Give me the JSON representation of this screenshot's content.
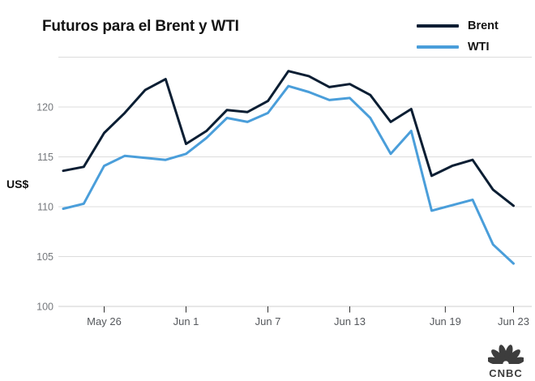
{
  "title": "Futuros para el Brent y WTI",
  "legend": [
    {
      "label": "Brent",
      "color": "#0b1e33"
    },
    {
      "label": "WTI",
      "color": "#4a9eda"
    }
  ],
  "y_axis_unit": "US$",
  "logo": {
    "text": "CNBC"
  },
  "colors": {
    "grid": "#dcdcdc",
    "axis_line": "#cfcfcf",
    "tick_mark": "#2f2f2f",
    "x_label": "#55585c",
    "y_label": "#75787c"
  },
  "chart_data": {
    "type": "line",
    "title": "Futuros para el Brent y WTI",
    "xlabel": "",
    "ylabel": "US$",
    "ylim": [
      100,
      125
    ],
    "yticks": [
      100,
      105,
      110,
      115,
      120
    ],
    "grid": true,
    "top_border": true,
    "legend_position": "top-right",
    "x_tick_labels": [
      {
        "label": "May 26",
        "pos": 2
      },
      {
        "label": "Jun 1",
        "pos": 6
      },
      {
        "label": "Jun 7",
        "pos": 10
      },
      {
        "label": "Jun 13",
        "pos": 14
      },
      {
        "label": "Jun 19",
        "pos": 18.667
      },
      {
        "label": "Jun 23",
        "pos": 22
      }
    ],
    "x_max": 22,
    "series": [
      {
        "name": "Brent",
        "color": "#0b1e33",
        "dates": [
          "May 24",
          "May 25",
          "May 26",
          "May 27",
          "May 30",
          "May 31",
          "Jun 1",
          "Jun 2",
          "Jun 3",
          "Jun 6",
          "Jun 7",
          "Jun 8",
          "Jun 9",
          "Jun 10",
          "Jun 13",
          "Jun 14",
          "Jun 15",
          "Jun 16",
          "Jun 17",
          "Jun 20",
          "Jun 21",
          "Jun 22",
          "Jun 23"
        ],
        "x": [
          0,
          1,
          2,
          3,
          4,
          5,
          6,
          7,
          8,
          9,
          10,
          11,
          12,
          13,
          14,
          15,
          16,
          17,
          18,
          19,
          20,
          21,
          22
        ],
        "values": [
          113.6,
          114.0,
          117.4,
          119.4,
          121.7,
          122.8,
          116.3,
          117.6,
          119.7,
          119.5,
          120.6,
          123.6,
          123.1,
          122.0,
          122.3,
          121.2,
          118.5,
          119.8,
          113.1,
          114.1,
          114.7,
          111.7,
          110.1
        ]
      },
      {
        "name": "WTI",
        "color": "#4a9eda",
        "dates": [
          "May 24",
          "May 25",
          "May 26",
          "May 27",
          "May 31",
          "Jun 1",
          "Jun 2",
          "Jun 3",
          "Jun 6",
          "Jun 7",
          "Jun 8",
          "Jun 9",
          "Jun 10",
          "Jun 13",
          "Jun 14",
          "Jun 15",
          "Jun 16",
          "Jun 17",
          "Jun 21",
          "Jun 22",
          "Jun 23"
        ],
        "x": [
          0,
          1,
          2,
          3,
          5,
          6,
          7,
          8,
          9,
          10,
          11,
          12,
          13,
          14,
          15,
          16,
          17,
          18,
          20,
          21,
          22
        ],
        "values": [
          109.8,
          110.3,
          114.1,
          115.1,
          114.7,
          115.3,
          116.9,
          118.9,
          118.5,
          119.4,
          122.1,
          121.5,
          120.7,
          120.9,
          118.9,
          115.3,
          117.6,
          109.6,
          110.7,
          106.2,
          104.3
        ]
      }
    ]
  }
}
